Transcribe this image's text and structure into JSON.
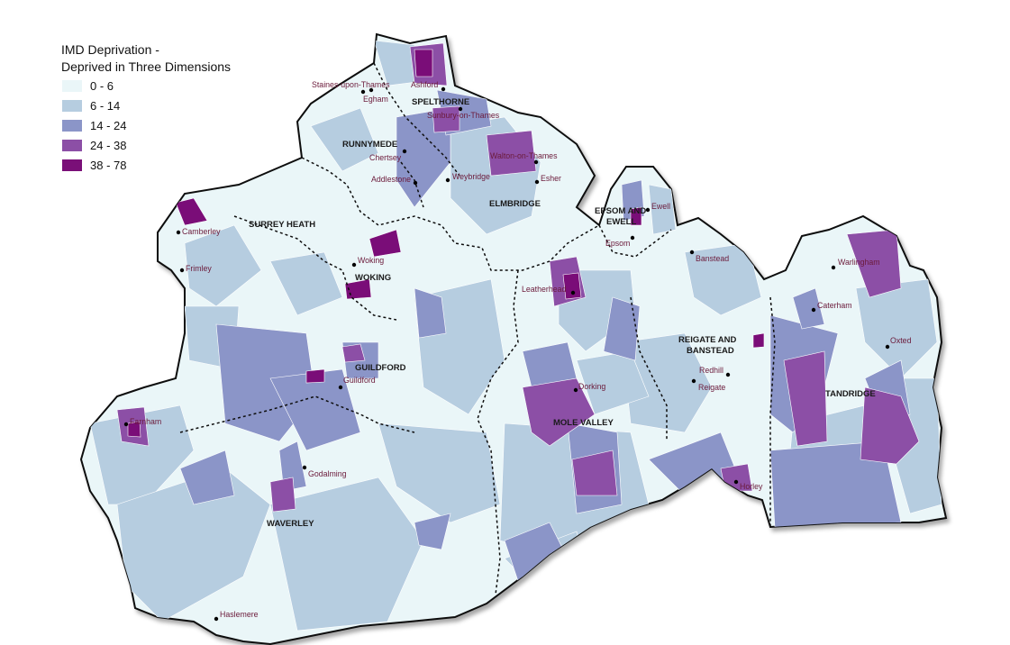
{
  "legend": {
    "title_line1": "IMD Deprivation -",
    "title_line2": "Deprived in Three Dimensions",
    "classes": [
      {
        "label": "0 - 6",
        "color": "#eaf6f8"
      },
      {
        "label": "6 - 14",
        "color": "#b6cde0"
      },
      {
        "label": "14 - 24",
        "color": "#8b95c8"
      },
      {
        "label": "24 - 38",
        "color": "#8c4fa6"
      },
      {
        "label": "38 - 78",
        "color": "#7a0f78"
      }
    ]
  },
  "districts": [
    "SPELTHORNE",
    "RUNNYMEDE",
    "SURREY HEATH",
    "ELMBRIDGE",
    "EPSOM AND",
    "EWELL",
    "WOKING",
    "GUILDFORD",
    "MOLE VALLEY",
    "REIGATE AND",
    "BANSTEAD",
    "TANDRIDGE",
    "WAVERLEY"
  ],
  "towns": [
    "Staines-upon-Thames",
    "Ashford",
    "Egham",
    "Sunbury-on-Thames",
    "Chertsey",
    "Walton-on-Thames",
    "Addlestone",
    "Weybridge",
    "Esher",
    "Ewell",
    "Epsom",
    "Camberley",
    "Frimley",
    "Woking",
    "Banstead",
    "Warlingham",
    "Leatherhead",
    "Caterham",
    "Oxted",
    "Guildford",
    "Redhill",
    "Reigate",
    "Dorking",
    "Farnham",
    "Godalming",
    "Horley",
    "Haslemere"
  ],
  "colors": {
    "outline": "#111111",
    "district_border": "#111111",
    "patch_light": "#eaf6f8"
  }
}
